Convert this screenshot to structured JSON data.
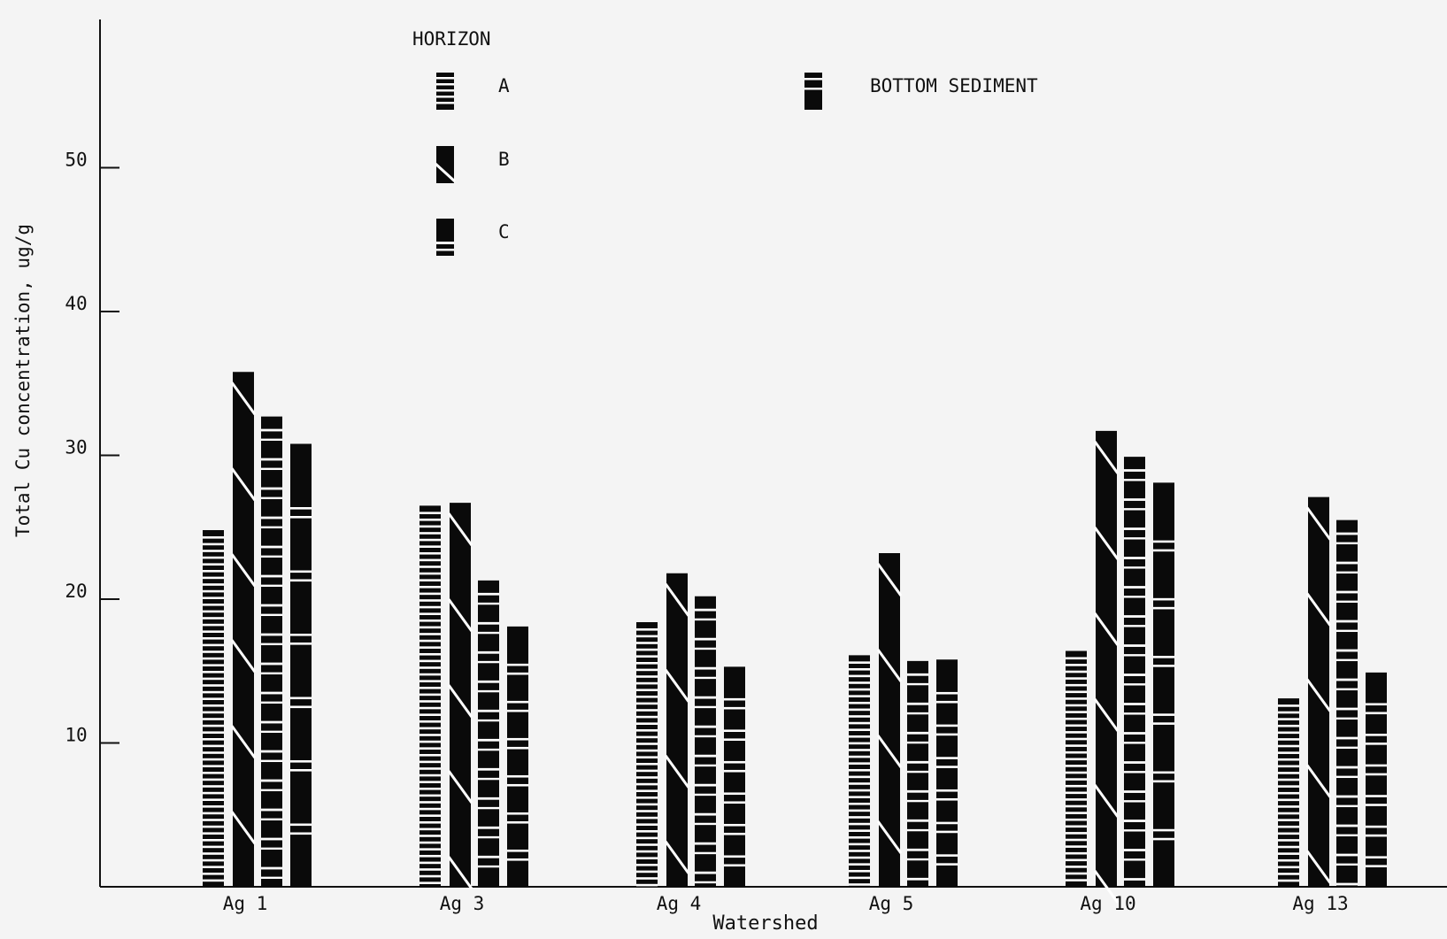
{
  "chart_data": {
    "type": "bar",
    "title": "",
    "xlabel": "Watershed",
    "ylabel": "Total Cu concentration, ug/g",
    "ylim": [
      0,
      60
    ],
    "yticks": [
      10,
      20,
      30,
      40,
      50
    ],
    "categories": [
      "Ag 1",
      "Ag 3",
      "Ag 4",
      "Ag 5",
      "Ag 10",
      "Ag 13"
    ],
    "legend_title": "HORIZON",
    "series": [
      {
        "name": "A",
        "pattern": "horizontal-stripes",
        "values": [
          24.8,
          26.5,
          18.4,
          16.1,
          16.4,
          13.1
        ]
      },
      {
        "name": "B",
        "pattern": "diagonal-breaks",
        "values": [
          35.8,
          26.7,
          21.8,
          23.2,
          31.7,
          27.1
        ]
      },
      {
        "name": "C",
        "pattern": "block-segments",
        "values": [
          32.7,
          21.3,
          20.2,
          15.7,
          29.9,
          25.5
        ]
      },
      {
        "name": "BOTTOM SEDIMENT",
        "pattern": "sparse-stripes",
        "values": [
          30.8,
          18.1,
          15.3,
          15.8,
          28.1,
          14.9
        ]
      }
    ],
    "grid": false,
    "colors": {
      "bar": "#0a0a0a",
      "background": "#f4f4f4",
      "stripe": "#ffffff"
    }
  }
}
